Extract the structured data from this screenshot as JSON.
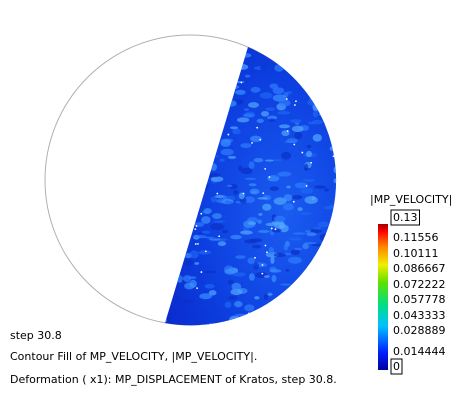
{
  "legend": {
    "title": "|MP_VELOCITY|",
    "labels": [
      "0.13",
      "0.11556",
      "0.10111",
      "0.086667",
      "0.072222",
      "0.057778",
      "0.043333",
      "0.028889",
      "0.014444",
      "0"
    ]
  },
  "caption": [
    "step 30.8",
    "Contour Fill of MP_VELOCITY, |MP_VELOCITY|.",
    "Deformation ( x1): MP_DISPLACEMENT of Kratos, step 30.8."
  ]
}
